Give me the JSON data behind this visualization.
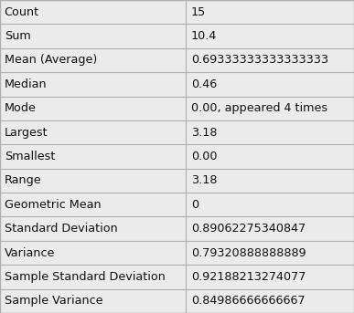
{
  "rows": [
    [
      "Count",
      "15"
    ],
    [
      "Sum",
      "10.4"
    ],
    [
      "Mean (Average)",
      "0.69333333333333333"
    ],
    [
      "Median",
      "0.46"
    ],
    [
      "Mode",
      "0.00, appeared 4 times"
    ],
    [
      "Largest",
      "3.18"
    ],
    [
      "Smallest",
      "0.00"
    ],
    [
      "Range",
      "3.18"
    ],
    [
      "Geometric Mean",
      "0"
    ],
    [
      "Standard Deviation",
      "0.89062275340847"
    ],
    [
      "Variance",
      "0.79320888888889"
    ],
    [
      "Sample Standard Deviation",
      "0.92188213274077"
    ],
    [
      "Sample Variance",
      "0.84986666666667"
    ]
  ],
  "col_split": 0.525,
  "bg_color": "#ebebeb",
  "border_color": "#b0b0b0",
  "text_color": "#111111",
  "font_size": 9.2,
  "fig_width": 3.87,
  "fig_height": 3.43,
  "dpi": 100
}
